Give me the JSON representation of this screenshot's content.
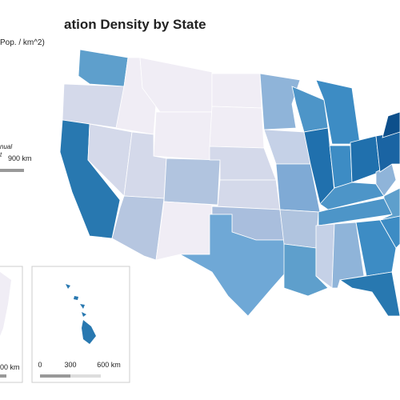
{
  "header": {
    "title": "ation Density by State",
    "subtitle": "Pop. / km^2)"
  },
  "main_scale": {
    "label": "900 km"
  },
  "side_note": {
    "lines": [
      "nual",
      "t"
    ]
  },
  "alaska_inset": {
    "scale_label": "00 km"
  },
  "hawaii_inset": {
    "scale_labels": [
      "0",
      "300",
      "600 km"
    ]
  }
}
